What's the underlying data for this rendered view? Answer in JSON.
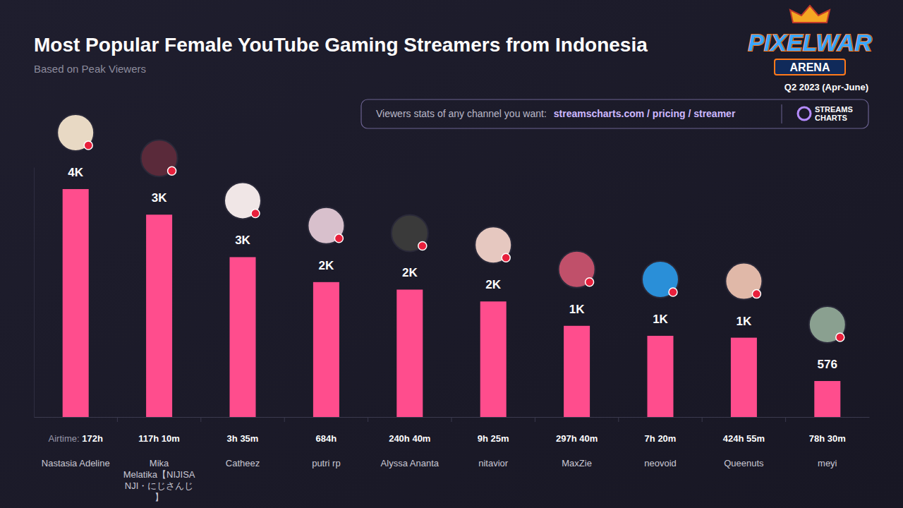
{
  "chart_data": {
    "type": "bar",
    "title": "Most Popular Female YouTube Gaming Streamers from Indonesia",
    "subtitle": "Based on Peak Viewers",
    "period": "Q2 2023 (Apr-June)",
    "logo": [
      "PIXELWAR",
      "ARENA"
    ],
    "promo_text": "Viewers stats of any channel you want:",
    "promo_link": "streamscharts.com / pricing / streamer",
    "brand": [
      "STREAMS",
      "CHARTS"
    ],
    "categories": [
      "Nastasia Adeline",
      "Mika Melatika【NIJISANJI・にじさんじ】",
      "Catheez",
      "putri rp",
      "Alyssa Ananta",
      "nitavior",
      "MaxZie",
      "neovoid",
      "Queenuts",
      "meyi"
    ],
    "values": [
      3650,
      3240,
      2560,
      2160,
      2040,
      1850,
      1460,
      1300,
      1270,
      576
    ],
    "value_labels": [
      "4K",
      "3K",
      "3K",
      "2K",
      "2K",
      "2K",
      "1K",
      "1K",
      "1K",
      "576"
    ],
    "airtime_label": "Airtime:",
    "airtime": [
      "172h",
      "117h 10m",
      "3h 35m",
      "684h",
      "240h 40m",
      "9h 25m",
      "297h 40m",
      "7h 20m",
      "424h 55m",
      "78h 30m"
    ],
    "color": "#ff4d8d",
    "ylim": [
      0,
      4000
    ],
    "yticks": [],
    "tick_labels": false,
    "data_labels": true,
    "grid": false
  }
}
